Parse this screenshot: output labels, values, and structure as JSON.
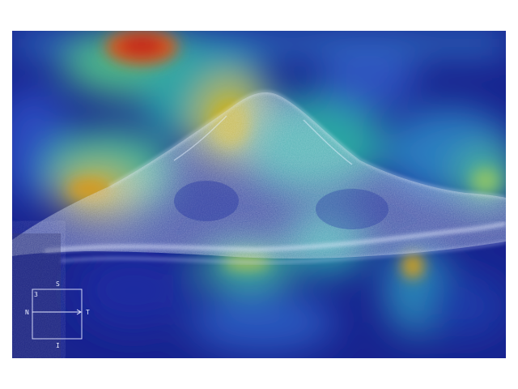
{
  "image": {
    "description_colors": {
      "heat_low": "#18238f",
      "heat_mid": "#2aa8a8",
      "heat_high": "#d6b21c",
      "heat_peak": "#c8341a",
      "tissue": "#d8e6f0"
    }
  },
  "orientation": {
    "superior": "S",
    "inferior": "I",
    "nasal": "N",
    "temporal": "T",
    "index": "3"
  }
}
